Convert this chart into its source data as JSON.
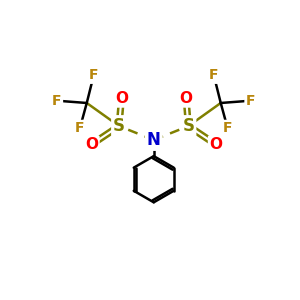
{
  "bg_color": "#ffffff",
  "atom_colors": {
    "F": "#b8860b",
    "S": "#808000",
    "O": "#ff0000",
    "N": "#0000cd",
    "C": "#000000"
  },
  "bond_color": "#000000",
  "figsize": [
    3.0,
    3.0
  ],
  "dpi": 100,
  "xlim": [
    0,
    10
  ],
  "ylim": [
    0,
    10
  ]
}
